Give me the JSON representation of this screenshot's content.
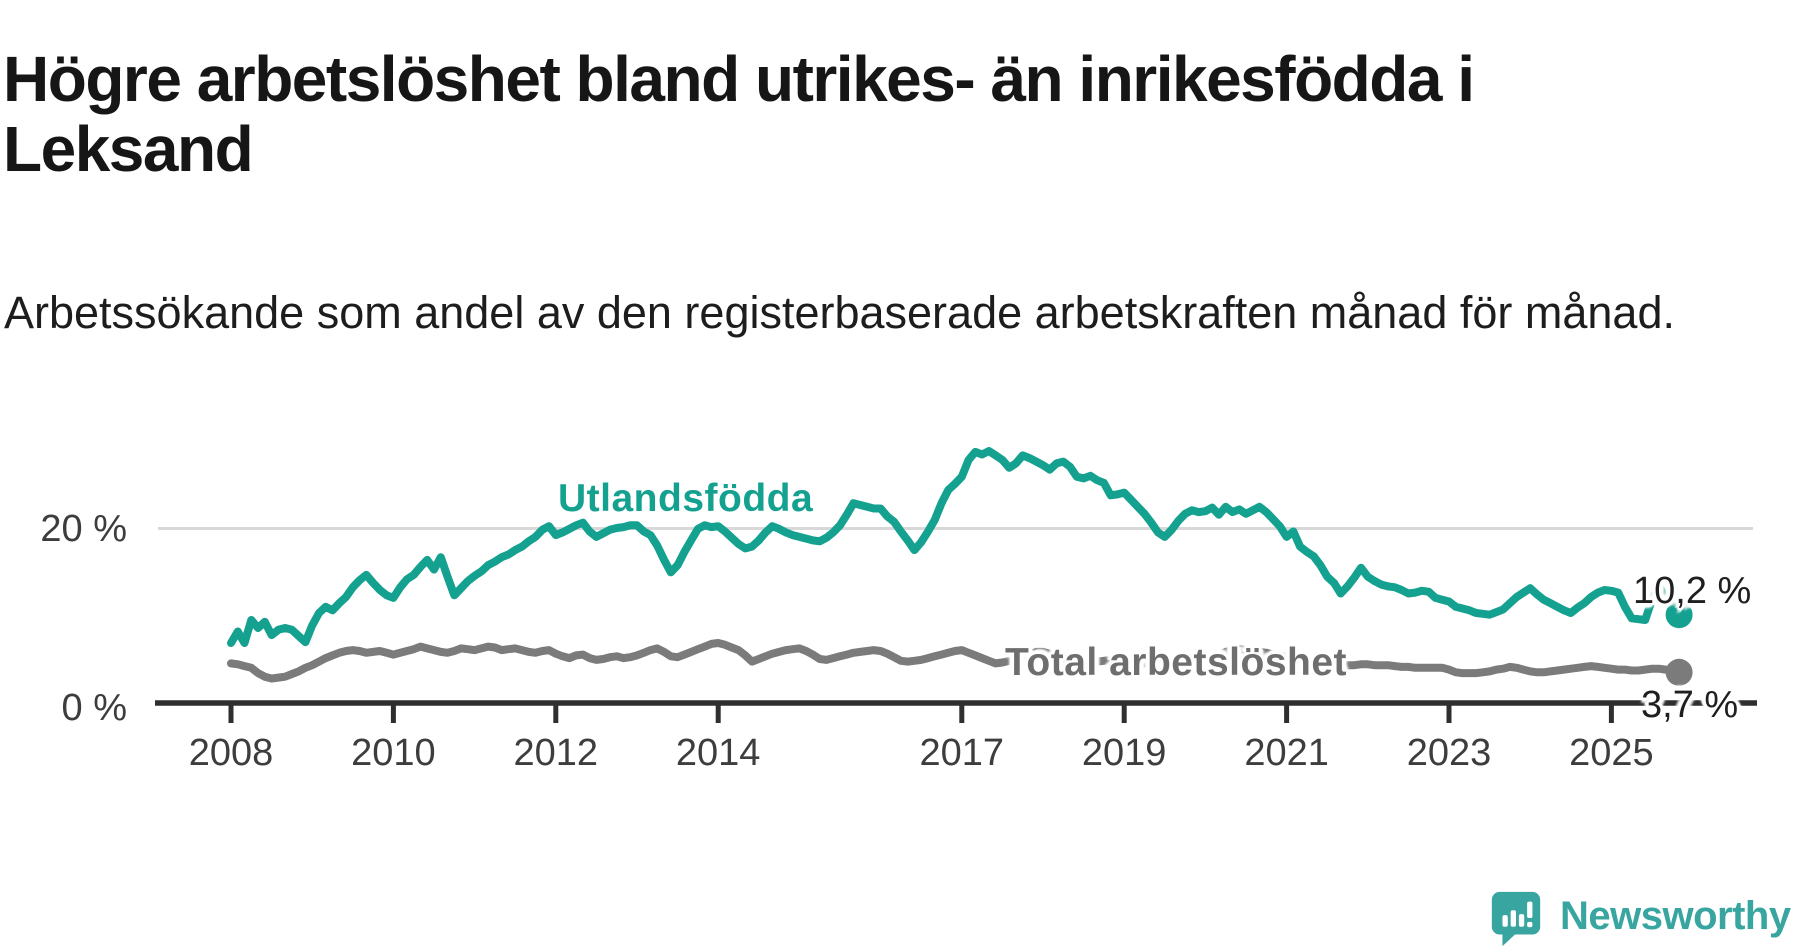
{
  "header": {
    "title": "Högre arbetslöshet bland utrikes- än inrikesfödda i Leksand",
    "subtitle": "Arbetssökande som andel av den registerbaserade arbetskraften månad för månad."
  },
  "chart_data": {
    "type": "line",
    "title": "Högre arbetslöshet bland utrikes- än inrikesfödda i Leksand",
    "x_unit": "month",
    "x_start": "2008-01",
    "x_end": "2025-11",
    "x_tick_years": [
      2008,
      2010,
      2012,
      2014,
      2017,
      2019,
      2021,
      2023,
      2025
    ],
    "ylim": [
      0,
      30
    ],
    "gridline_values": [
      20
    ],
    "grid": "single-horizontal-at-20",
    "legend_position": "inline-labels-on-lines",
    "y_axis_labels": {
      "zero": "0 %",
      "twenty": "20 %"
    },
    "series": [
      {
        "name": "Utlandsfödda",
        "color": "#15a190",
        "end_value": 10.2,
        "end_value_label": "10,2 %",
        "values": [
          7.0,
          8.3,
          7.0,
          9.6,
          8.7,
          9.4,
          7.9,
          8.5,
          8.7,
          8.5,
          7.8,
          7.1,
          9.0,
          10.4,
          11.1,
          10.7,
          11.5,
          12.2,
          13.3,
          14.1,
          14.7,
          13.8,
          13.0,
          12.4,
          12.1,
          13.3,
          14.2,
          14.7,
          15.6,
          16.4,
          15.3,
          16.7,
          14.5,
          12.4,
          13.2,
          14.0,
          14.6,
          15.1,
          15.8,
          16.2,
          16.7,
          17.0,
          17.5,
          17.9,
          18.5,
          19.0,
          19.8,
          20.2,
          19.2,
          19.5,
          19.9,
          20.3,
          20.6,
          19.6,
          19.0,
          19.4,
          19.8,
          20.0,
          20.1,
          20.3,
          20.3,
          19.6,
          19.2,
          18.0,
          16.4,
          15.0,
          15.8,
          17.3,
          18.6,
          19.9,
          20.3,
          20.1,
          20.2,
          19.6,
          18.9,
          18.2,
          17.7,
          17.9,
          18.6,
          19.5,
          20.2,
          19.9,
          19.5,
          19.2,
          19.0,
          18.8,
          18.6,
          18.5,
          18.9,
          19.5,
          20.3,
          21.5,
          22.8,
          22.6,
          22.4,
          22.2,
          22.2,
          21.3,
          20.7,
          19.6,
          18.6,
          17.5,
          18.4,
          19.6,
          20.9,
          22.8,
          24.3,
          25.0,
          25.8,
          27.7,
          28.6,
          28.3,
          28.7,
          28.2,
          27.7,
          26.8,
          27.3,
          28.2,
          27.9,
          27.5,
          27.1,
          26.6,
          27.3,
          27.5,
          26.9,
          25.8,
          25.6,
          25.9,
          25.4,
          25.1,
          23.7,
          23.8,
          24.0,
          23.2,
          22.4,
          21.6,
          20.6,
          19.5,
          19.0,
          19.8,
          20.8,
          21.6,
          22.0,
          21.8,
          21.9,
          22.3,
          21.5,
          22.4,
          21.8,
          22.1,
          21.6,
          22.0,
          22.4,
          21.8,
          21.0,
          20.2,
          19.0,
          19.6,
          17.9,
          17.3,
          16.8,
          15.8,
          14.5,
          13.8,
          12.6,
          13.4,
          14.4,
          15.5,
          14.5,
          14.0,
          13.6,
          13.4,
          13.3,
          13.0,
          12.6,
          12.7,
          12.9,
          12.8,
          12.1,
          11.9,
          11.7,
          11.1,
          10.9,
          10.7,
          10.4,
          10.3,
          10.2,
          10.5,
          10.8,
          11.5,
          12.2,
          12.7,
          13.2,
          12.5,
          11.9,
          11.5,
          11.1,
          10.7,
          10.4,
          11.0,
          11.5,
          12.2,
          12.7,
          13.0,
          12.9,
          12.7,
          11.1,
          9.8,
          9.7,
          9.6,
          11.9,
          13.6,
          11.9,
          12.2,
          10.2
        ]
      },
      {
        "name": "Total arbetslöshet",
        "color": "#7b7b7b",
        "end_value": 3.7,
        "end_value_label": "3,7 %",
        "values": [
          4.7,
          4.6,
          4.4,
          4.2,
          3.6,
          3.2,
          3.0,
          3.1,
          3.2,
          3.5,
          3.8,
          4.2,
          4.5,
          4.9,
          5.3,
          5.6,
          5.9,
          6.1,
          6.2,
          6.1,
          5.9,
          6.0,
          6.1,
          5.9,
          5.7,
          5.9,
          6.1,
          6.3,
          6.6,
          6.4,
          6.2,
          6.0,
          5.9,
          6.1,
          6.4,
          6.3,
          6.2,
          6.4,
          6.6,
          6.5,
          6.2,
          6.3,
          6.4,
          6.2,
          6.0,
          5.9,
          6.1,
          6.2,
          5.8,
          5.5,
          5.3,
          5.6,
          5.7,
          5.3,
          5.1,
          5.2,
          5.4,
          5.5,
          5.3,
          5.4,
          5.6,
          5.9,
          6.2,
          6.4,
          6.0,
          5.5,
          5.4,
          5.7,
          6.0,
          6.3,
          6.6,
          6.9,
          7.0,
          6.8,
          6.5,
          6.2,
          5.6,
          4.9,
          5.2,
          5.5,
          5.8,
          6.0,
          6.2,
          6.3,
          6.4,
          6.1,
          5.7,
          5.2,
          5.1,
          5.3,
          5.5,
          5.7,
          5.9,
          6.0,
          6.1,
          6.2,
          6.1,
          5.8,
          5.4,
          5.0,
          4.9,
          5.0,
          5.1,
          5.3,
          5.5,
          5.7,
          5.9,
          6.1,
          6.2,
          5.9,
          5.6,
          5.3,
          5.0,
          4.7,
          4.8,
          5.0,
          5.2,
          5.4,
          5.7,
          6.0,
          6.0,
          5.8,
          5.5,
          5.2,
          5.0,
          4.8,
          4.7,
          4.8,
          4.9,
          5.0,
          5.1,
          5.2,
          5.2,
          5.0,
          4.9,
          4.7,
          4.6,
          4.5,
          4.4,
          4.5,
          4.6,
          4.7,
          4.8,
          4.9,
          5.1,
          5.3,
          5.6,
          6.0,
          6.2,
          6.3,
          6.2,
          6.1,
          6.0,
          5.9,
          5.7,
          5.6,
          5.5,
          5.3,
          5.2,
          5.0,
          4.9,
          4.8,
          4.7,
          4.6,
          4.6,
          4.5,
          4.5,
          4.6,
          4.6,
          4.5,
          4.5,
          4.5,
          4.4,
          4.3,
          4.3,
          4.2,
          4.2,
          4.2,
          4.2,
          4.2,
          4.0,
          3.7,
          3.6,
          3.6,
          3.6,
          3.7,
          3.8,
          4.0,
          4.1,
          4.3,
          4.2,
          4.0,
          3.8,
          3.7,
          3.7,
          3.8,
          3.9,
          4.0,
          4.1,
          4.2,
          4.3,
          4.4,
          4.3,
          4.2,
          4.1,
          4.0,
          4.0,
          3.9,
          3.9,
          4.0,
          4.1,
          4.1,
          4.0,
          3.9,
          3.7
        ]
      }
    ]
  },
  "branding": {
    "logo_text": "Newsworthy",
    "logo_color": "#38a5a0",
    "logo_icon": "speech-bubble-bar-chart"
  }
}
